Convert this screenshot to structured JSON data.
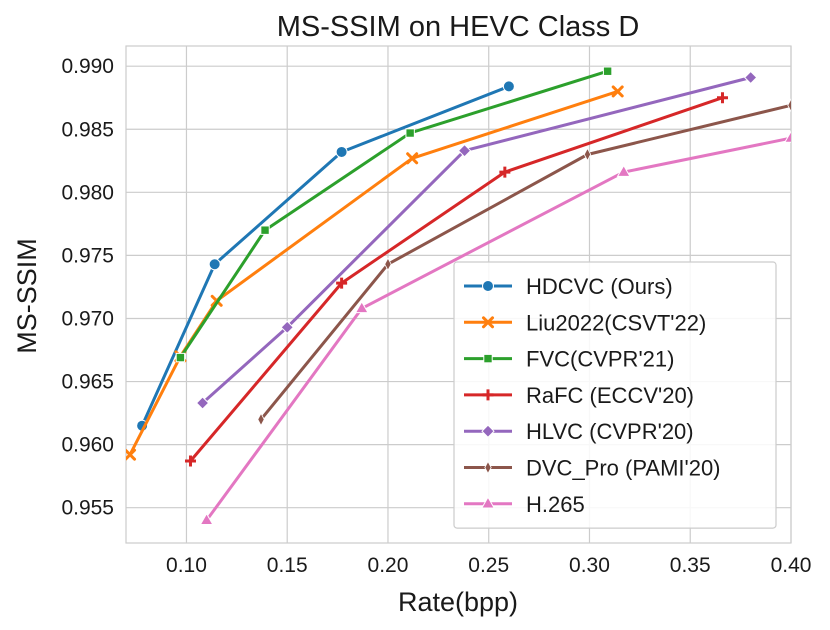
{
  "chart_data": {
    "type": "line",
    "title": "MS-SSIM on HEVC Class D",
    "xlabel": "Rate(bpp)",
    "ylabel": "MS-SSIM",
    "xlim": [
      0.07,
      0.4
    ],
    "ylim": [
      0.9522,
      0.9916
    ],
    "xticks": [
      0.1,
      0.15,
      0.2,
      0.25,
      0.3,
      0.35,
      0.4
    ],
    "xtick_labels": [
      "0.10",
      "0.15",
      "0.20",
      "0.25",
      "0.30",
      "0.35",
      "0.40"
    ],
    "yticks": [
      0.955,
      0.96,
      0.965,
      0.97,
      0.975,
      0.98,
      0.985,
      0.99
    ],
    "ytick_labels": [
      "0.955",
      "0.960",
      "0.965",
      "0.970",
      "0.975",
      "0.980",
      "0.985",
      "0.990"
    ],
    "grid": true,
    "legend_position": "lower-right",
    "series": [
      {
        "name": "HDCVC (Ours)",
        "color": "#1f77b4",
        "marker": "circle",
        "x": [
          0.078,
          0.114,
          0.177,
          0.26
        ],
        "y": [
          0.9615,
          0.9743,
          0.9832,
          0.9884
        ]
      },
      {
        "name": "Liu2022(CSVT'22)",
        "color": "#ff7f0e",
        "marker": "x",
        "x": [
          0.072,
          0.097,
          0.115,
          0.212,
          0.314
        ],
        "y": [
          0.9592,
          0.967,
          0.9714,
          0.9827,
          0.988
        ]
      },
      {
        "name": "FVC(CVPR'21)",
        "color": "#2ca02c",
        "marker": "square",
        "x": [
          0.097,
          0.139,
          0.211,
          0.309
        ],
        "y": [
          0.9669,
          0.977,
          0.9847,
          0.9896
        ]
      },
      {
        "name": "RaFC (ECCV'20)",
        "color": "#d62728",
        "marker": "plus",
        "x": [
          0.102,
          0.177,
          0.258,
          0.366
        ],
        "y": [
          0.9587,
          0.9728,
          0.9816,
          0.9875
        ]
      },
      {
        "name": "HLVC (CVPR'20)",
        "color": "#9467bd",
        "marker": "diamond",
        "x": [
          0.108,
          0.15,
          0.238,
          0.38
        ],
        "y": [
          0.9633,
          0.9693,
          0.9833,
          0.9891
        ]
      },
      {
        "name": "DVC_Pro (PAMI'20)",
        "color": "#8c564b",
        "marker": "thin_diamond",
        "x": [
          0.137,
          0.2,
          0.299,
          0.4
        ],
        "y": [
          0.962,
          0.9743,
          0.983,
          0.9869
        ]
      },
      {
        "name": "H.265",
        "color": "#e377c2",
        "marker": "triangle",
        "x": [
          0.11,
          0.187,
          0.317,
          0.4
        ],
        "y": [
          0.954,
          0.9708,
          0.9816,
          0.9843
        ]
      }
    ]
  }
}
